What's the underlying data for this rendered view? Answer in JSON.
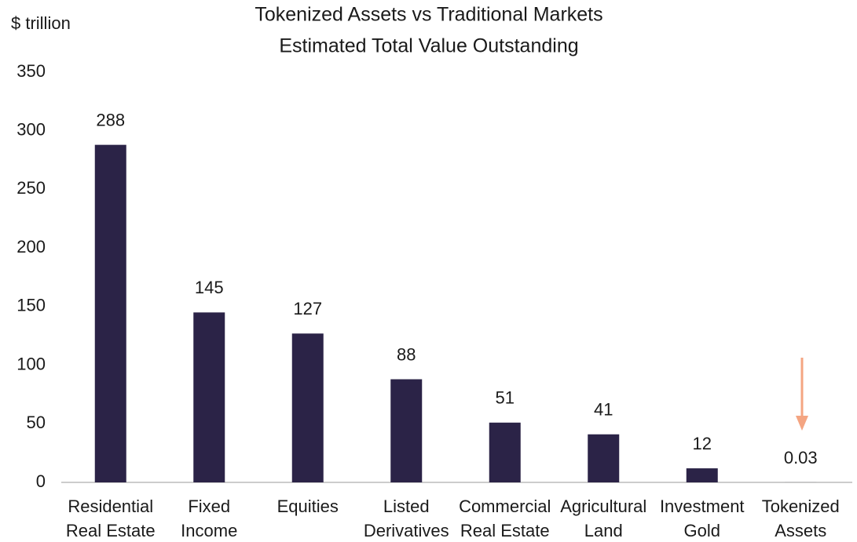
{
  "chart_data": {
    "type": "bar",
    "title": "Tokenized Assets vs Traditional Markets",
    "subtitle": "Estimated Total Value Outstanding",
    "y_axis_label": "$ trillion",
    "categories": [
      [
        "Residential",
        "Real Estate"
      ],
      [
        "Fixed",
        "Income"
      ],
      [
        "Equities"
      ],
      [
        "Listed",
        "Derivatives"
      ],
      [
        "Commercial",
        "Real Estate"
      ],
      [
        "Agricultural",
        "Land"
      ],
      [
        "Investment",
        "Gold"
      ],
      [
        "Tokenized",
        "Assets"
      ]
    ],
    "values": [
      288,
      145,
      127,
      88,
      51,
      41,
      12,
      0.03
    ],
    "color": "#2b2347",
    "ylim": [
      0,
      350
    ],
    "yticks": [
      0,
      50,
      100,
      150,
      200,
      250,
      300,
      350
    ],
    "grid": false
  }
}
